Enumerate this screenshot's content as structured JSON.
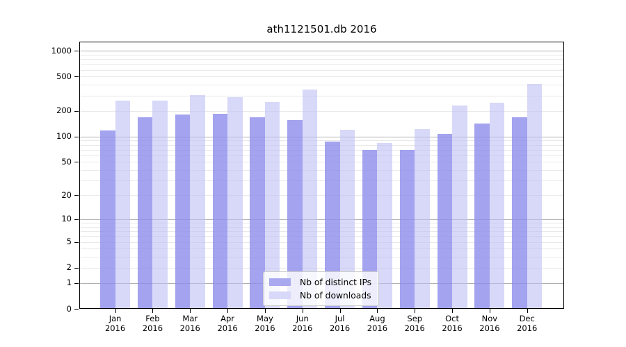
{
  "chart_data": {
    "type": "bar",
    "title": "ath1121501.db 2016",
    "categories": [
      "Jan 2016",
      "Feb 2016",
      "Mar 2016",
      "Apr 2016",
      "May 2016",
      "Jun 2016",
      "Jul 2016",
      "Aug 2016",
      "Sep 2016",
      "Oct 2016",
      "Nov 2016",
      "Dec 2016"
    ],
    "series": [
      {
        "name": "Nb of distinct IPs",
        "color": "#a9a9ef",
        "fill": "rgba(140,140,235,0.8)",
        "values": [
          118,
          167,
          181,
          185,
          168,
          156,
          87,
          69,
          69,
          107,
          143,
          167
        ]
      },
      {
        "name": "Nb of downloads",
        "color": "#d8d8f9",
        "fill": "rgba(190,190,245,0.6)",
        "values": [
          265,
          262,
          303,
          287,
          253,
          354,
          119,
          84,
          121,
          229,
          250,
          410
        ]
      }
    ],
    "xlabel": "",
    "ylabel": "",
    "yscale": "log1p",
    "yticks": [
      0,
      1,
      2,
      5,
      10,
      20,
      50,
      100,
      200,
      500,
      1000
    ],
    "ylim": [
      0,
      1280
    ],
    "grid": true,
    "legend_position": "lower center",
    "colors": {
      "grid_major": "#b0b0b0",
      "grid_minor": "#e9e9e9",
      "axis": "#000000",
      "text": "#000000",
      "background": "#ffffff"
    }
  }
}
